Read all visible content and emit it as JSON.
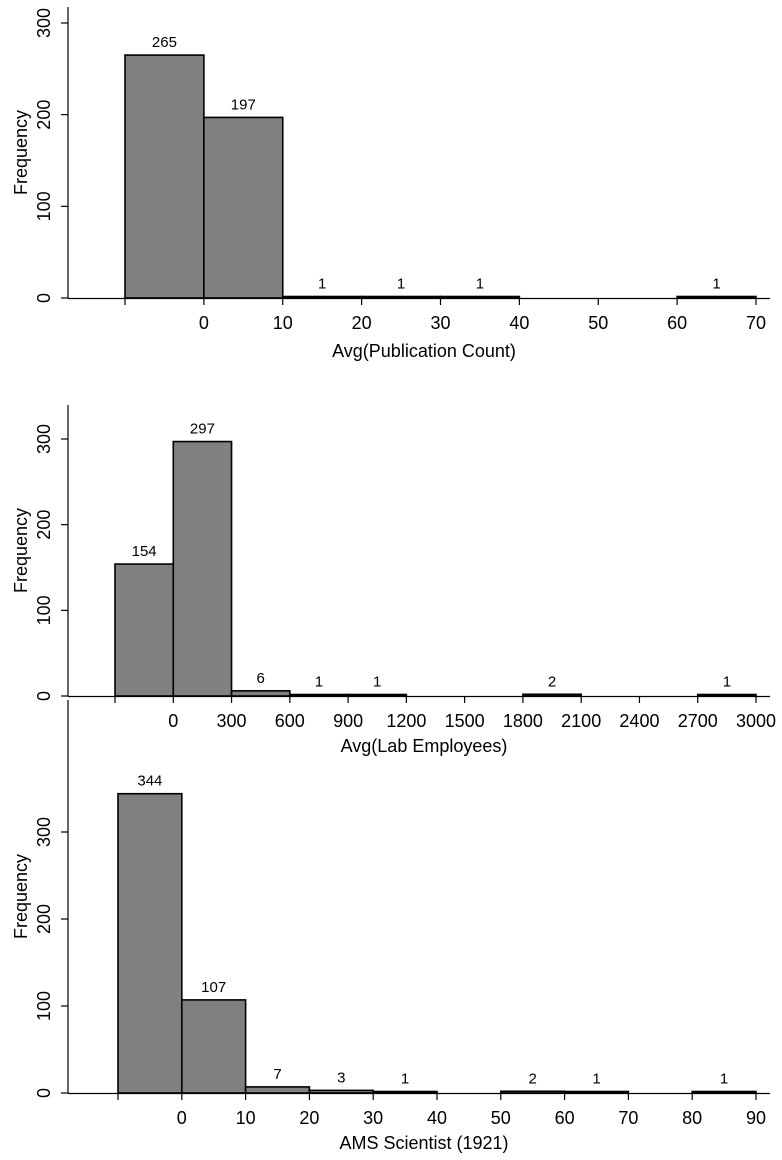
{
  "chart_data": [
    {
      "type": "bar",
      "xlabel": "Avg(Publication Count)",
      "ylabel": "Frequency",
      "xlim": [
        -10,
        70
      ],
      "ylim": [
        0,
        300
      ],
      "xticks": [
        0,
        10,
        20,
        30,
        40,
        50,
        60,
        70
      ],
      "yticks": [
        0,
        100,
        200,
        300
      ],
      "bins": [
        {
          "x0": -10,
          "x1": 0,
          "count": 265
        },
        {
          "x0": 0,
          "x1": 10,
          "count": 197
        },
        {
          "x0": 10,
          "x1": 20,
          "count": 1
        },
        {
          "x0": 20,
          "x1": 30,
          "count": 1
        },
        {
          "x0": 30,
          "x1": 40,
          "count": 1
        },
        {
          "x0": 60,
          "x1": 70,
          "count": 1
        }
      ],
      "grid": false,
      "bar_color": "#808080"
    },
    {
      "type": "bar",
      "xlabel": "Avg(Lab Employees)",
      "ylabel": "Frequency",
      "xlim": [
        -300,
        3000
      ],
      "ylim": [
        0,
        330
      ],
      "xticks": [
        0,
        300,
        600,
        900,
        1200,
        1500,
        1800,
        2100,
        2400,
        2700,
        3000
      ],
      "yticks": [
        0,
        100,
        200,
        300
      ],
      "bins": [
        {
          "x0": -300,
          "x1": 0,
          "count": 154
        },
        {
          "x0": 0,
          "x1": 300,
          "count": 297
        },
        {
          "x0": 300,
          "x1": 600,
          "count": 6
        },
        {
          "x0": 600,
          "x1": 900,
          "count": 1
        },
        {
          "x0": 900,
          "x1": 1200,
          "count": 1
        },
        {
          "x0": 1800,
          "x1": 2100,
          "count": 2
        },
        {
          "x0": 2700,
          "x1": 3000,
          "count": 1
        }
      ],
      "grid": false,
      "bar_color": "#808080"
    },
    {
      "type": "bar",
      "xlabel": "AMS Scientist (1921)",
      "ylabel": "Frequency",
      "xlim": [
        -10,
        90
      ],
      "ylim": [
        0,
        344
      ],
      "xticks": [
        0,
        10,
        20,
        30,
        40,
        50,
        60,
        70,
        80,
        90
      ],
      "yticks": [
        0,
        100,
        200,
        300
      ],
      "bins": [
        {
          "x0": -10,
          "x1": 0,
          "count": 344
        },
        {
          "x0": 0,
          "x1": 10,
          "count": 107
        },
        {
          "x0": 10,
          "x1": 20,
          "count": 7
        },
        {
          "x0": 20,
          "x1": 30,
          "count": 3
        },
        {
          "x0": 30,
          "x1": 40,
          "count": 1
        },
        {
          "x0": 50,
          "x1": 60,
          "count": 2
        },
        {
          "x0": 60,
          "x1": 70,
          "count": 1
        },
        {
          "x0": 80,
          "x1": 90,
          "count": 1
        }
      ],
      "grid": false,
      "bar_color": "#808080"
    }
  ]
}
